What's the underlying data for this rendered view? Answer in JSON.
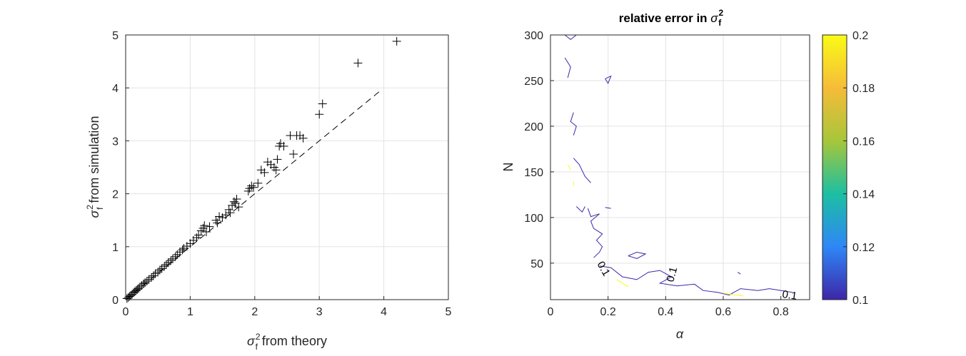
{
  "chart_data": [
    {
      "type": "scatter",
      "xlabel": "σ_f^2 from theory",
      "ylabel": "σ_f^2 from simulation",
      "xlim": [
        0,
        5
      ],
      "ylim": [
        0,
        5
      ],
      "xticks": [
        "0",
        "1",
        "2",
        "3",
        "4",
        "5"
      ],
      "yticks": [
        "0",
        "1",
        "2",
        "3",
        "4",
        "5"
      ],
      "grid": true,
      "marker": "+",
      "reference_line": {
        "style": "dashed",
        "x": [
          0,
          3.95
        ],
        "y": [
          0,
          3.95
        ]
      },
      "series": [
        {
          "x": [
            0.02,
            0.04,
            0.06,
            0.08,
            0.1,
            0.12,
            0.14,
            0.16,
            0.18,
            0.2,
            0.22,
            0.25,
            0.28,
            0.3,
            0.33,
            0.36,
            0.4,
            0.43,
            0.46,
            0.5,
            0.53,
            0.56,
            0.6,
            0.63,
            0.66,
            0.7,
            0.73,
            0.77,
            0.8,
            0.84,
            0.88,
            0.9,
            0.95,
            1.0,
            1.05,
            1.1,
            1.13,
            1.17,
            1.2,
            1.22,
            1.25,
            1.3,
            1.4,
            1.42,
            1.45,
            1.5,
            1.55,
            1.6,
            1.62,
            1.65,
            1.68,
            1.7,
            1.72,
            1.75,
            1.9,
            1.92,
            1.95,
            1.98,
            2.05,
            2.1,
            2.15,
            2.2,
            2.25,
            2.3,
            2.35,
            2.33,
            2.38,
            2.4,
            2.45,
            2.55,
            2.6,
            2.65,
            2.7,
            2.75,
            3.0,
            3.05,
            3.6,
            4.2
          ],
          "y": [
            0.02,
            0.04,
            0.06,
            0.08,
            0.1,
            0.13,
            0.15,
            0.17,
            0.19,
            0.21,
            0.24,
            0.27,
            0.3,
            0.32,
            0.35,
            0.38,
            0.42,
            0.45,
            0.49,
            0.52,
            0.56,
            0.59,
            0.63,
            0.66,
            0.7,
            0.74,
            0.77,
            0.81,
            0.85,
            0.9,
            0.94,
            0.97,
            1.01,
            1.06,
            1.12,
            1.17,
            1.22,
            1.3,
            1.35,
            1.4,
            1.28,
            1.38,
            1.5,
            1.45,
            1.57,
            1.55,
            1.6,
            1.7,
            1.64,
            1.78,
            1.85,
            1.82,
            1.9,
            1.75,
            2.05,
            2.1,
            2.15,
            2.12,
            2.2,
            2.45,
            2.4,
            2.6,
            2.55,
            2.5,
            2.65,
            2.45,
            2.9,
            2.95,
            2.9,
            3.1,
            2.75,
            3.1,
            3.1,
            3.05,
            3.5,
            3.7,
            4.47,
            4.88
          ]
        }
      ]
    },
    {
      "type": "contour",
      "title": "relative error in σ_f^2",
      "xlabel": "α",
      "ylabel": "N",
      "xlim": [
        0,
        0.9
      ],
      "ylim": [
        10,
        300
      ],
      "xticks": [
        "0",
        "0.2",
        "0.4",
        "0.6",
        "0.8"
      ],
      "yticks": [
        "50",
        "100",
        "150",
        "200",
        "250",
        "300"
      ],
      "grid": true,
      "colorbar": {
        "range": [
          0.1,
          0.2
        ],
        "ticks": [
          "0.1",
          "0.12",
          "0.14",
          "0.16",
          "0.18",
          "0.2"
        ],
        "colors": [
          "#3e26a8",
          "#2e87f7",
          "#1cbfa2",
          "#a7c63a",
          "#f6bc39",
          "#f9fb15"
        ]
      },
      "contour_labels": [
        "0.1",
        "0.1",
        "0.1"
      ],
      "contours": [
        {
          "level": 0.1,
          "color": "#3e26a8",
          "points": [
            [
              0.05,
              300
            ],
            [
              0.07,
              295
            ],
            [
              0.09,
              300
            ]
          ]
        },
        {
          "level": 0.1,
          "color": "#3e26a8",
          "points": [
            [
              0.05,
              275
            ],
            [
              0.07,
              265
            ],
            [
              0.06,
              253
            ]
          ]
        },
        {
          "level": 0.1,
          "color": "#3e26a8",
          "points": [
            [
              0.19,
              252
            ],
            [
              0.21,
              255
            ],
            [
              0.2,
              247
            ],
            [
              0.19,
              252
            ]
          ]
        },
        {
          "level": 0.1,
          "color": "#3e26a8",
          "points": [
            [
              0.08,
              215
            ],
            [
              0.07,
              205
            ],
            [
              0.09,
              200
            ],
            [
              0.08,
              190
            ]
          ]
        },
        {
          "level": 0.1,
          "color": "#3e26a8",
          "points": [
            [
              0.08,
              165
            ],
            [
              0.1,
              158
            ],
            [
              0.12,
              145
            ],
            [
              0.14,
              138
            ]
          ]
        },
        {
          "level": 0.1,
          "color": "#3e26a8",
          "points": [
            [
              0.09,
              112
            ],
            [
              0.11,
              106
            ],
            [
              0.12,
              112
            ]
          ]
        },
        {
          "level": 0.1,
          "color": "#3e26a8",
          "points": [
            [
              0.19,
              111
            ],
            [
              0.21,
              110
            ]
          ]
        },
        {
          "level": 0.1,
          "color": "#3e26a8",
          "points": [
            [
              0.13,
              110
            ],
            [
              0.14,
              101
            ],
            [
              0.17,
              104
            ],
            [
              0.14,
              96
            ],
            [
              0.15,
              88
            ],
            [
              0.18,
              82
            ],
            [
              0.16,
              75
            ],
            [
              0.18,
              68
            ],
            [
              0.17,
              62
            ],
            [
              0.15,
              56
            ]
          ]
        },
        {
          "level": 0.1,
          "color": "#3e26a8",
          "points": [
            [
              0.27,
              58
            ],
            [
              0.3,
              62
            ],
            [
              0.33,
              60
            ],
            [
              0.3,
              55
            ],
            [
              0.27,
              58
            ]
          ]
        },
        {
          "level": 0.1,
          "color": "#3e26a8",
          "points": [
            [
              0.17,
              47
            ],
            [
              0.21,
              45
            ],
            [
              0.25,
              35
            ],
            [
              0.3,
              32
            ],
            [
              0.34,
              40
            ],
            [
              0.38,
              42
            ],
            [
              0.42,
              35
            ],
            [
              0.38,
              28
            ],
            [
              0.44,
              25
            ],
            [
              0.5,
              27
            ],
            [
              0.53,
              20
            ],
            [
              0.58,
              18
            ],
            [
              0.62,
              15
            ],
            [
              0.66,
              22
            ],
            [
              0.72,
              20
            ],
            [
              0.76,
              22
            ],
            [
              0.84,
              18
            ]
          ]
        },
        {
          "level": 0.1,
          "color": "#3e26a8",
          "points": [
            [
              0.65,
              40
            ],
            [
              0.66,
              38
            ]
          ]
        },
        {
          "level": 0.2,
          "color": "#f9fb15",
          "points": [
            [
              0.23,
              32
            ],
            [
              0.27,
              24
            ]
          ]
        },
        {
          "level": 0.2,
          "color": "#f9fb15",
          "points": [
            [
              0.6,
              17
            ],
            [
              0.67,
              14
            ]
          ]
        },
        {
          "level": 0.2,
          "color": "#f9fb15",
          "points": [
            [
              0.06,
              158
            ],
            [
              0.07,
              152
            ]
          ]
        },
        {
          "level": 0.2,
          "color": "#f9fb15",
          "points": [
            [
              0.08,
              140
            ],
            [
              0.08,
              135
            ]
          ]
        }
      ]
    }
  ]
}
